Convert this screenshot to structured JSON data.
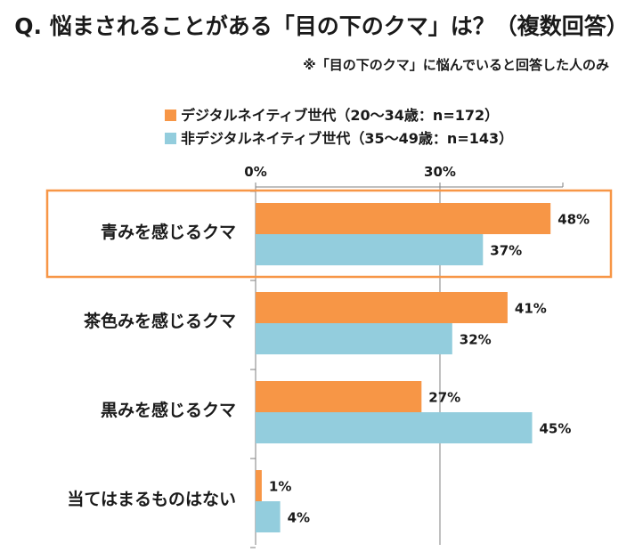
{
  "header": {
    "title": "Q. 悩まされることがある「目の下のクマ」は？（複数回答）",
    "note": "※「目の下のクマ」に悩んでいると回答した人のみ"
  },
  "colors": {
    "series1": "#f79646",
    "series2": "#93cddd",
    "highlight": "#f79646",
    "axis": "#7f7f7f"
  },
  "chart_data": {
    "type": "bar",
    "orientation": "horizontal",
    "categories": [
      "青みを感じるクマ",
      "茶色みを感じるクマ",
      "黒みを感じるクマ",
      "当てはまるものはない"
    ],
    "series": [
      {
        "name": "デジタルネイティブ世代（20～34歳：n=172）",
        "values": [
          48,
          41,
          27,
          1
        ]
      },
      {
        "name": "非デジタルネイティブ世代（35～49歳：n=143）",
        "values": [
          37,
          32,
          45,
          4
        ]
      }
    ],
    "data_labels": [
      [
        "48%",
        "41%",
        "27%",
        "1%"
      ],
      [
        "37%",
        "32%",
        "45%",
        "4%"
      ]
    ],
    "x_ticks": [
      0,
      30
    ],
    "x_tick_labels": [
      "0%",
      "30%"
    ],
    "xlim": [
      0,
      50
    ],
    "highlighted_category": "青みを感じるクマ",
    "legend_position": "top"
  }
}
